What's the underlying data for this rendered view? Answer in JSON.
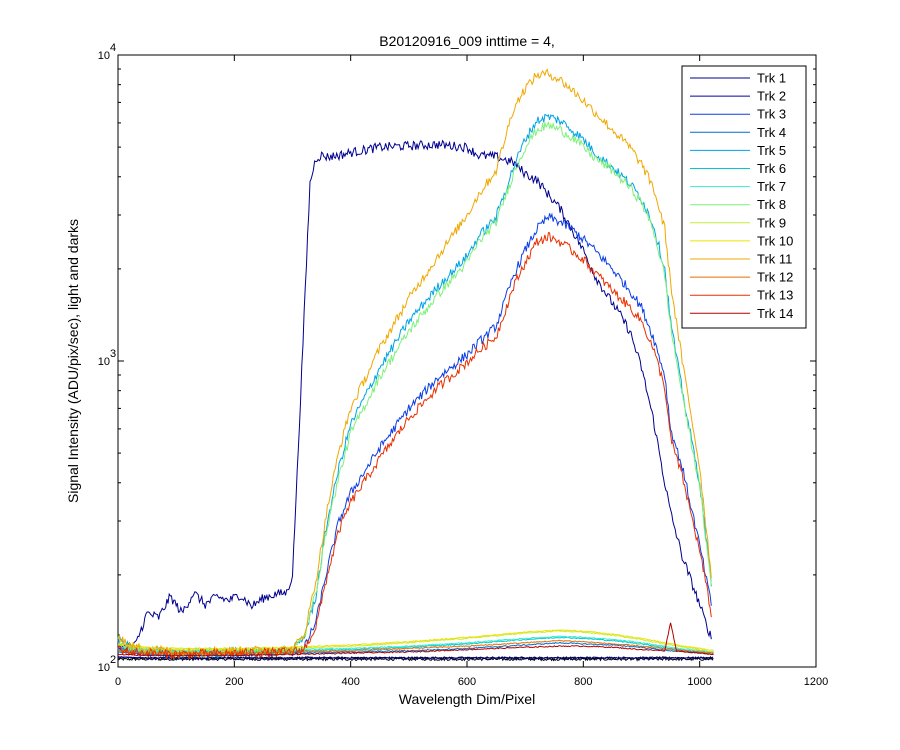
{
  "chart_data": {
    "type": "line",
    "title": "B20120916_009 inttime = 4,",
    "xlabel": "Wavelength Dim/Pixel",
    "ylabel": "Signal Intensity (ADU/pix/sec), light and darks",
    "xlim": [
      0,
      1200
    ],
    "ylim": [
      100,
      10000
    ],
    "y_scale": "log",
    "x_ticks": [
      0,
      200,
      400,
      600,
      800,
      1000,
      1200
    ],
    "x_tick_labels": [
      "0",
      "200",
      "400",
      "600",
      "800",
      "1000",
      "1200"
    ],
    "y_ticks": [
      100,
      1000,
      10000
    ],
    "y_tick_labels": [
      {
        "base": "10",
        "exp": "2"
      },
      {
        "base": "10",
        "exp": "3"
      },
      {
        "base": "10",
        "exp": "4"
      }
    ],
    "grid": false,
    "legend_position": "top-right",
    "series": [
      {
        "name": "Trk 1",
        "color": "#00008f",
        "x": [
          0,
          30,
          50,
          70,
          90,
          110,
          130,
          150,
          170,
          190,
          210,
          230,
          250,
          270,
          290,
          300,
          310,
          320,
          330,
          340,
          350,
          360,
          380,
          400,
          450,
          500,
          550,
          600,
          620,
          650,
          680,
          700,
          720,
          740,
          760,
          780,
          800,
          820,
          840,
          860,
          880,
          900,
          920,
          940,
          950,
          970,
          1000,
          1010,
          1020
        ],
        "y": [
          115,
          118,
          150,
          145,
          170,
          150,
          175,
          160,
          170,
          165,
          172,
          158,
          168,
          173,
          175,
          200,
          520,
          1400,
          3800,
          4600,
          4700,
          4650,
          4700,
          4800,
          5000,
          5050,
          5100,
          5000,
          4700,
          4650,
          4450,
          4100,
          3900,
          3500,
          3150,
          2700,
          2300,
          1900,
          1650,
          1450,
          1250,
          950,
          650,
          400,
          320,
          230,
          160,
          140,
          125
        ]
      },
      {
        "name": "Trk 2",
        "color": "#0000a8",
        "x": [
          0,
          50,
          100,
          200,
          300,
          400,
          500,
          600,
          700,
          760,
          800,
          850,
          900,
          950,
          1000,
          1024
        ],
        "y": [
          108,
          107,
          107,
          107,
          107,
          107,
          107,
          107,
          107,
          107,
          107,
          107,
          107,
          107,
          107,
          107
        ]
      },
      {
        "name": "Trk 3",
        "color": "#0d3ee6",
        "x": [
          0,
          20,
          100,
          200,
          300,
          320,
          340,
          360,
          380,
          400,
          450,
          500,
          550,
          600,
          620,
          650,
          680,
          700,
          720,
          740,
          760,
          780,
          800,
          820,
          850,
          880,
          900,
          920,
          940,
          950,
          970,
          1000,
          1020
        ],
        "y": [
          120,
          113,
          110,
          111,
          112,
          115,
          140,
          210,
          300,
          370,
          520,
          700,
          880,
          1050,
          1150,
          1300,
          1900,
          2300,
          2700,
          2950,
          2850,
          2700,
          2500,
          2300,
          2000,
          1700,
          1500,
          1200,
          900,
          600,
          450,
          250,
          160
        ]
      },
      {
        "name": "Trk 4",
        "color": "#006fc8",
        "x": [
          0,
          50,
          100,
          200,
          300,
          400,
          500,
          600,
          700,
          760,
          800,
          850,
          900,
          950,
          1000,
          1024
        ],
        "y": [
          112,
          110,
          110,
          110,
          111,
          112,
          113,
          115,
          118,
          120,
          119,
          118,
          116,
          113,
          111,
          110
        ]
      },
      {
        "name": "Trk 5",
        "color": "#00a3e6",
        "x": [
          0,
          20,
          100,
          200,
          300,
          320,
          340,
          360,
          380,
          400,
          450,
          500,
          550,
          600,
          620,
          650,
          680,
          700,
          720,
          740,
          760,
          780,
          800,
          820,
          850,
          880,
          900,
          920,
          940,
          950,
          970,
          1000,
          1020
        ],
        "y": [
          125,
          115,
          111,
          112,
          113,
          125,
          170,
          300,
          450,
          620,
          950,
          1350,
          1750,
          2200,
          2550,
          2950,
          4300,
          5300,
          6100,
          6300,
          6100,
          5700,
          5300,
          4800,
          4300,
          3800,
          3400,
          2800,
          2000,
          1350,
          800,
          400,
          190
        ]
      },
      {
        "name": "Trk 6",
        "color": "#00c8d6",
        "x": [
          0,
          50,
          100,
          200,
          300,
          400,
          500,
          600,
          700,
          760,
          800,
          850,
          900,
          950,
          1000,
          1024
        ],
        "y": [
          114,
          112,
          112,
          112,
          113,
          114,
          116,
          119,
          123,
          125,
          124,
          122,
          119,
          115,
          112,
          111
        ]
      },
      {
        "name": "Trk 7",
        "color": "#3de8c8",
        "x": [
          0,
          50,
          100,
          200,
          300,
          400,
          500,
          600,
          700,
          760,
          800,
          850,
          900,
          950,
          1000,
          1024
        ],
        "y": [
          116,
          114,
          113,
          113,
          114,
          115,
          117,
          120,
          124,
          126,
          125,
          123,
          120,
          116,
          113,
          112
        ]
      },
      {
        "name": "Trk 8",
        "color": "#7ff07a",
        "x": [
          0,
          20,
          100,
          200,
          300,
          320,
          340,
          360,
          380,
          400,
          450,
          500,
          550,
          600,
          620,
          650,
          680,
          700,
          720,
          740,
          760,
          780,
          800,
          820,
          850,
          880,
          900,
          920,
          940,
          950,
          970,
          1000,
          1020
        ],
        "y": [
          124,
          115,
          111,
          112,
          113,
          125,
          175,
          290,
          420,
          580,
          890,
          1250,
          1650,
          2100,
          2450,
          2850,
          4100,
          5000,
          5700,
          5900,
          5700,
          5400,
          5000,
          4600,
          4200,
          3700,
          3300,
          2700,
          1900,
          1300,
          780,
          390,
          185
        ]
      },
      {
        "name": "Trk 9",
        "color": "#c3ee3c",
        "x": [
          0,
          50,
          100,
          200,
          300,
          400,
          500,
          600,
          700,
          760,
          800,
          850,
          900,
          950,
          1000,
          1024
        ],
        "y": [
          118,
          115,
          114,
          114,
          115,
          117,
          120,
          124,
          129,
          131,
          130,
          127,
          123,
          118,
          114,
          112
        ]
      },
      {
        "name": "Trk 10",
        "color": "#f0e000",
        "x": [
          0,
          50,
          100,
          200,
          300,
          400,
          500,
          600,
          700,
          760,
          800,
          850,
          900,
          950,
          1000,
          1024
        ],
        "y": [
          119,
          116,
          115,
          115,
          116,
          118,
          121,
          125,
          130,
          132,
          131,
          128,
          124,
          119,
          115,
          113
        ]
      },
      {
        "name": "Trk 11",
        "color": "#f0a800",
        "x": [
          0,
          20,
          100,
          200,
          300,
          320,
          340,
          360,
          380,
          400,
          450,
          500,
          550,
          600,
          620,
          650,
          680,
          700,
          720,
          740,
          760,
          780,
          800,
          820,
          850,
          880,
          900,
          920,
          940,
          950,
          970,
          1000,
          1020
        ],
        "y": [
          128,
          117,
          112,
          113,
          114,
          128,
          190,
          330,
          510,
          700,
          1100,
          1600,
          2200,
          3000,
          3500,
          4200,
          6700,
          7800,
          8600,
          8700,
          8300,
          7700,
          7100,
          6500,
          5700,
          5000,
          4400,
          3700,
          2700,
          1800,
          1000,
          450,
          200
        ]
      },
      {
        "name": "Trk 12",
        "color": "#ee6a00",
        "x": [
          0,
          50,
          100,
          200,
          300,
          400,
          500,
          600,
          700,
          760,
          800,
          850,
          900,
          950,
          1000,
          1024
        ],
        "y": [
          113,
          111,
          111,
          111,
          112,
          113,
          115,
          117,
          120,
          122,
          121,
          119,
          117,
          114,
          112,
          111
        ]
      },
      {
        "name": "Trk 13",
        "color": "#e83000",
        "x": [
          0,
          20,
          100,
          200,
          300,
          320,
          340,
          360,
          380,
          400,
          450,
          500,
          550,
          600,
          620,
          650,
          680,
          700,
          720,
          740,
          760,
          780,
          800,
          820,
          850,
          880,
          900,
          920,
          940,
          950,
          970,
          1000,
          1020
        ],
        "y": [
          115,
          112,
          110,
          111,
          112,
          114,
          135,
          200,
          280,
          345,
          480,
          650,
          820,
          990,
          1080,
          1200,
          1750,
          2100,
          2450,
          2550,
          2450,
          2300,
          2150,
          1950,
          1700,
          1500,
          1350,
          1100,
          820,
          560,
          420,
          240,
          150
        ]
      },
      {
        "name": "Trk 14",
        "color": "#b00000",
        "x": [
          0,
          50,
          100,
          200,
          300,
          400,
          500,
          600,
          700,
          760,
          800,
          850,
          900,
          940,
          950,
          960,
          1000,
          1024
        ],
        "y": [
          110,
          109,
          109,
          109,
          110,
          111,
          112,
          114,
          116,
          117,
          117,
          116,
          114,
          113,
          140,
          113,
          111,
          110
        ]
      }
    ],
    "dark_frames": {
      "color": "#000000",
      "x": [
        0,
        1024
      ],
      "y": [
        106,
        106
      ]
    }
  }
}
